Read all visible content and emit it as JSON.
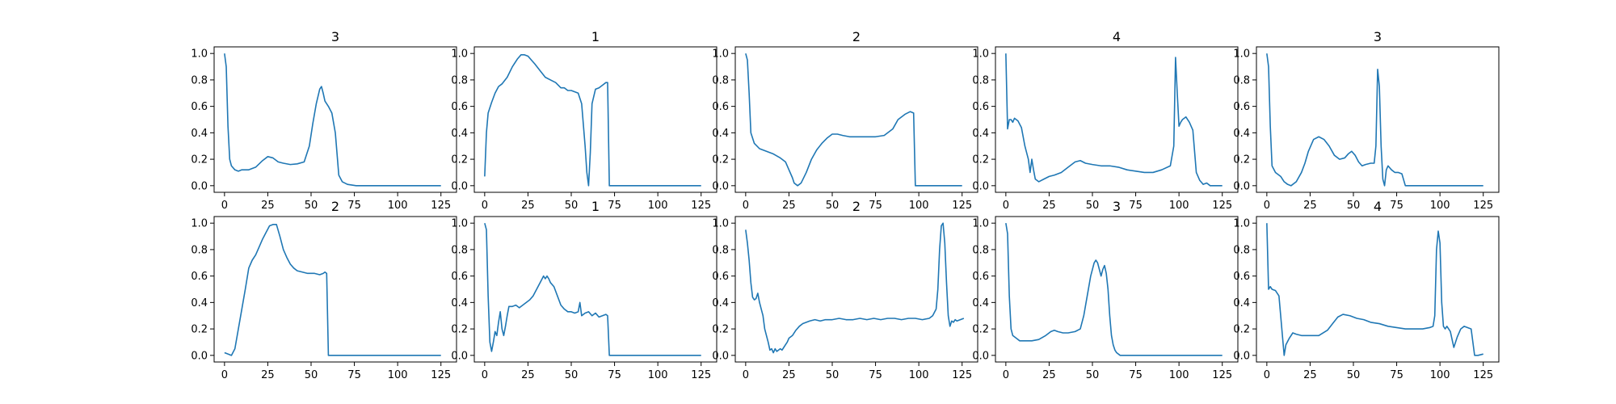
{
  "line_color": "#1f77b4",
  "chart_data": [
    {
      "type": "line",
      "title": "3",
      "xlim": [
        -6,
        134
      ],
      "ylim": [
        -0.05,
        1.05
      ],
      "xticks": [
        0,
        25,
        50,
        75,
        100,
        125
      ],
      "yticks": [
        0.0,
        0.2,
        0.4,
        0.6,
        0.8,
        1.0
      ],
      "x": [
        0,
        1,
        2,
        3,
        4,
        6,
        8,
        10,
        14,
        18,
        22,
        25,
        28,
        31,
        34,
        38,
        42,
        46,
        49,
        51,
        53,
        55,
        56,
        57,
        58,
        60,
        62,
        64,
        66,
        68,
        71,
        76,
        85,
        100,
        110,
        125
      ],
      "y": [
        1.0,
        0.9,
        0.45,
        0.2,
        0.15,
        0.12,
        0.11,
        0.12,
        0.12,
        0.14,
        0.19,
        0.22,
        0.21,
        0.18,
        0.17,
        0.16,
        0.165,
        0.18,
        0.3,
        0.47,
        0.62,
        0.73,
        0.75,
        0.7,
        0.64,
        0.6,
        0.55,
        0.4,
        0.08,
        0.03,
        0.01,
        0.0,
        0.0,
        0.0,
        0.0,
        0.0
      ]
    },
    {
      "type": "line",
      "title": "1",
      "xlim": [
        -6,
        134
      ],
      "ylim": [
        -0.05,
        1.05
      ],
      "xticks": [
        0,
        25,
        50,
        75,
        100,
        125
      ],
      "yticks": [
        0.0,
        0.2,
        0.4,
        0.6,
        0.8,
        1.0
      ],
      "x": [
        0,
        1,
        2,
        4,
        6,
        8,
        10,
        13,
        16,
        19,
        21,
        23,
        25,
        27,
        29,
        32,
        35,
        38,
        41,
        44,
        46,
        48,
        50,
        52,
        54,
        56,
        58,
        59,
        60,
        61,
        62,
        64,
        66,
        68,
        70,
        71,
        72,
        73,
        80,
        100,
        125
      ],
      "y": [
        0.07,
        0.4,
        0.55,
        0.63,
        0.7,
        0.75,
        0.77,
        0.82,
        0.9,
        0.96,
        0.99,
        0.99,
        0.98,
        0.95,
        0.92,
        0.87,
        0.82,
        0.8,
        0.78,
        0.74,
        0.74,
        0.72,
        0.72,
        0.71,
        0.7,
        0.62,
        0.3,
        0.1,
        0.0,
        0.25,
        0.62,
        0.73,
        0.74,
        0.76,
        0.78,
        0.78,
        0.0,
        0.0,
        0.0,
        0.0,
        0.0
      ]
    },
    {
      "type": "line",
      "title": "2",
      "xlim": [
        -6,
        134
      ],
      "ylim": [
        -0.05,
        1.05
      ],
      "xticks": [
        0,
        25,
        50,
        75,
        100,
        125
      ],
      "yticks": [
        0.0,
        0.2,
        0.4,
        0.6,
        0.8,
        1.0
      ],
      "x": [
        0,
        1,
        2,
        3,
        5,
        8,
        12,
        16,
        20,
        23,
        25,
        27,
        28,
        30,
        32,
        35,
        38,
        41,
        44,
        47,
        50,
        53,
        56,
        60,
        65,
        70,
        75,
        80,
        85,
        88,
        92,
        95,
        97,
        98,
        100,
        110,
        125
      ],
      "y": [
        1.0,
        0.95,
        0.7,
        0.4,
        0.32,
        0.28,
        0.26,
        0.24,
        0.21,
        0.18,
        0.12,
        0.06,
        0.02,
        0.0,
        0.02,
        0.1,
        0.2,
        0.27,
        0.32,
        0.36,
        0.39,
        0.39,
        0.38,
        0.37,
        0.37,
        0.37,
        0.37,
        0.38,
        0.43,
        0.5,
        0.54,
        0.56,
        0.55,
        0.0,
        0.0,
        0.0,
        0.0
      ]
    },
    {
      "type": "line",
      "title": "4",
      "xlim": [
        -6,
        134
      ],
      "ylim": [
        -0.05,
        1.05
      ],
      "xticks": [
        0,
        25,
        50,
        75,
        100,
        125
      ],
      "yticks": [
        0.0,
        0.2,
        0.4,
        0.6,
        0.8,
        1.0
      ],
      "x": [
        0,
        1,
        2,
        3,
        4,
        5,
        7,
        9,
        11,
        13,
        14,
        15,
        16,
        17,
        19,
        22,
        25,
        28,
        32,
        36,
        40,
        43,
        46,
        50,
        55,
        60,
        65,
        70,
        75,
        80,
        85,
        90,
        95,
        97,
        98,
        99,
        100,
        101,
        102,
        104,
        106,
        108,
        110,
        112,
        114,
        116,
        118,
        122,
        125
      ],
      "y": [
        1.0,
        0.43,
        0.5,
        0.5,
        0.48,
        0.51,
        0.49,
        0.44,
        0.3,
        0.2,
        0.1,
        0.2,
        0.12,
        0.05,
        0.03,
        0.05,
        0.07,
        0.08,
        0.1,
        0.14,
        0.18,
        0.19,
        0.17,
        0.16,
        0.15,
        0.15,
        0.14,
        0.12,
        0.11,
        0.1,
        0.1,
        0.12,
        0.15,
        0.3,
        0.97,
        0.7,
        0.45,
        0.48,
        0.5,
        0.52,
        0.48,
        0.42,
        0.1,
        0.04,
        0.01,
        0.02,
        0.0,
        0.0,
        0.0
      ]
    },
    {
      "type": "line",
      "title": "3",
      "xlim": [
        -6,
        134
      ],
      "ylim": [
        -0.05,
        1.05
      ],
      "xticks": [
        0,
        25,
        50,
        75,
        100,
        125
      ],
      "yticks": [
        0.0,
        0.2,
        0.4,
        0.6,
        0.8,
        1.0
      ],
      "x": [
        0,
        1,
        2,
        3,
        5,
        8,
        10,
        12,
        14,
        17,
        20,
        22,
        24,
        27,
        30,
        33,
        36,
        39,
        42,
        45,
        47,
        49,
        51,
        53,
        55,
        57,
        60,
        62,
        63,
        64,
        65,
        66,
        67,
        68,
        69,
        70,
        72,
        74,
        76,
        78,
        80,
        85,
        100,
        125
      ],
      "y": [
        1.0,
        0.9,
        0.45,
        0.15,
        0.1,
        0.07,
        0.03,
        0.01,
        0.0,
        0.03,
        0.1,
        0.17,
        0.26,
        0.35,
        0.37,
        0.35,
        0.3,
        0.23,
        0.2,
        0.21,
        0.24,
        0.26,
        0.23,
        0.18,
        0.15,
        0.16,
        0.17,
        0.17,
        0.3,
        0.88,
        0.75,
        0.3,
        0.05,
        0.0,
        0.12,
        0.15,
        0.12,
        0.1,
        0.1,
        0.09,
        0.0,
        0.0,
        0.0,
        0.0
      ]
    },
    {
      "type": "line",
      "title": "2",
      "xlim": [
        -6,
        134
      ],
      "ylim": [
        -0.05,
        1.05
      ],
      "xticks": [
        0,
        25,
        50,
        75,
        100,
        125
      ],
      "yticks": [
        0.0,
        0.2,
        0.4,
        0.6,
        0.8,
        1.0
      ],
      "x": [
        0,
        2,
        4,
        6,
        8,
        10,
        12,
        14,
        16,
        18,
        20,
        22,
        24,
        26,
        28,
        30,
        32,
        34,
        36,
        38,
        40,
        42,
        45,
        48,
        52,
        55,
        57,
        58,
        59,
        60,
        70,
        100,
        125
      ],
      "y": [
        0.02,
        0.01,
        0.0,
        0.05,
        0.2,
        0.35,
        0.5,
        0.66,
        0.72,
        0.76,
        0.82,
        0.88,
        0.93,
        0.98,
        0.99,
        0.99,
        0.9,
        0.8,
        0.74,
        0.69,
        0.66,
        0.64,
        0.63,
        0.62,
        0.62,
        0.61,
        0.62,
        0.63,
        0.62,
        0.0,
        0.0,
        0.0,
        0.0
      ]
    },
    {
      "type": "line",
      "title": "1",
      "xlim": [
        -6,
        134
      ],
      "ylim": [
        -0.05,
        1.05
      ],
      "xticks": [
        0,
        25,
        50,
        75,
        100,
        125
      ],
      "yticks": [
        0.0,
        0.2,
        0.4,
        0.6,
        0.8,
        1.0
      ],
      "x": [
        0,
        1,
        2,
        3,
        4,
        5,
        6,
        7,
        8,
        9,
        10,
        11,
        12,
        13,
        14,
        16,
        18,
        20,
        22,
        24,
        26,
        28,
        30,
        32,
        34,
        35,
        36,
        37,
        38,
        40,
        42,
        44,
        46,
        48,
        50,
        52,
        54,
        55,
        56,
        58,
        60,
        62,
        64,
        66,
        68,
        70,
        71,
        72,
        73,
        80,
        100,
        125
      ],
      "y": [
        1.0,
        0.95,
        0.45,
        0.1,
        0.03,
        0.1,
        0.18,
        0.15,
        0.25,
        0.33,
        0.2,
        0.15,
        0.22,
        0.3,
        0.37,
        0.37,
        0.38,
        0.36,
        0.38,
        0.4,
        0.42,
        0.45,
        0.5,
        0.55,
        0.6,
        0.58,
        0.6,
        0.58,
        0.55,
        0.52,
        0.45,
        0.38,
        0.35,
        0.33,
        0.33,
        0.32,
        0.33,
        0.4,
        0.3,
        0.32,
        0.33,
        0.3,
        0.32,
        0.29,
        0.3,
        0.31,
        0.3,
        0.0,
        0.0,
        0.0,
        0.0,
        0.0
      ]
    },
    {
      "type": "line",
      "title": "2",
      "xlim": [
        -6,
        134
      ],
      "ylim": [
        -0.05,
        1.05
      ],
      "xticks": [
        0,
        25,
        50,
        75,
        100,
        125
      ],
      "yticks": [
        0.0,
        0.2,
        0.4,
        0.6,
        0.8,
        1.0
      ],
      "x": [
        0,
        1,
        2,
        3,
        4,
        5,
        6,
        7,
        8,
        9,
        10,
        11,
        12,
        13,
        14,
        15,
        16,
        17,
        18,
        19,
        20,
        21,
        22,
        23,
        24,
        25,
        27,
        29,
        31,
        33,
        35,
        37,
        40,
        43,
        46,
        50,
        54,
        58,
        62,
        66,
        70,
        74,
        78,
        82,
        86,
        90,
        94,
        98,
        102,
        106,
        108,
        110,
        111,
        112,
        113,
        114,
        115,
        116,
        117,
        118,
        119,
        120,
        121,
        122,
        124,
        126
      ],
      "y": [
        0.95,
        0.85,
        0.72,
        0.55,
        0.44,
        0.42,
        0.43,
        0.47,
        0.4,
        0.35,
        0.3,
        0.2,
        0.15,
        0.1,
        0.04,
        0.05,
        0.02,
        0.05,
        0.03,
        0.04,
        0.05,
        0.04,
        0.06,
        0.08,
        0.1,
        0.13,
        0.15,
        0.19,
        0.22,
        0.24,
        0.25,
        0.26,
        0.27,
        0.26,
        0.27,
        0.27,
        0.28,
        0.27,
        0.27,
        0.28,
        0.27,
        0.28,
        0.27,
        0.28,
        0.28,
        0.27,
        0.28,
        0.28,
        0.27,
        0.28,
        0.3,
        0.35,
        0.5,
        0.8,
        0.98,
        1.0,
        0.85,
        0.55,
        0.3,
        0.22,
        0.26,
        0.25,
        0.27,
        0.26,
        0.27,
        0.28
      ]
    },
    {
      "type": "line",
      "title": "3",
      "xlim": [
        -6,
        134
      ],
      "ylim": [
        -0.05,
        1.05
      ],
      "xticks": [
        0,
        25,
        50,
        75,
        100,
        125
      ],
      "yticks": [
        0.0,
        0.2,
        0.4,
        0.6,
        0.8,
        1.0
      ],
      "x": [
        0,
        1,
        2,
        3,
        4,
        6,
        8,
        11,
        15,
        19,
        23,
        26,
        28,
        30,
        33,
        36,
        40,
        43,
        45,
        47,
        49,
        51,
        52,
        53,
        54,
        55,
        56,
        57,
        58,
        59,
        60,
        61,
        62,
        63,
        64,
        66,
        68,
        75,
        100,
        125
      ],
      "y": [
        1.0,
        0.92,
        0.45,
        0.2,
        0.15,
        0.13,
        0.11,
        0.11,
        0.11,
        0.12,
        0.15,
        0.18,
        0.19,
        0.18,
        0.17,
        0.17,
        0.18,
        0.2,
        0.3,
        0.45,
        0.6,
        0.7,
        0.72,
        0.7,
        0.65,
        0.6,
        0.65,
        0.68,
        0.62,
        0.5,
        0.3,
        0.15,
        0.08,
        0.04,
        0.02,
        0.0,
        0.0,
        0.0,
        0.0,
        0.0
      ]
    },
    {
      "type": "line",
      "title": "4",
      "xlim": [
        -6,
        134
      ],
      "ylim": [
        -0.05,
        1.05
      ],
      "xticks": [
        0,
        25,
        50,
        75,
        100,
        125
      ],
      "yticks": [
        0.0,
        0.2,
        0.4,
        0.6,
        0.8,
        1.0
      ],
      "x": [
        0,
        1,
        2,
        3,
        5,
        7,
        8,
        9,
        10,
        11,
        13,
        15,
        17,
        20,
        25,
        30,
        35,
        38,
        41,
        44,
        48,
        52,
        56,
        60,
        65,
        70,
        75,
        80,
        85,
        90,
        94,
        96,
        97,
        98,
        99,
        100,
        101,
        102,
        103,
        104,
        105,
        106,
        107,
        108,
        110,
        112,
        114,
        116,
        118,
        120,
        122,
        125
      ],
      "y": [
        1.0,
        0.5,
        0.52,
        0.5,
        0.49,
        0.45,
        0.3,
        0.15,
        0.0,
        0.08,
        0.13,
        0.17,
        0.16,
        0.15,
        0.15,
        0.15,
        0.19,
        0.24,
        0.29,
        0.31,
        0.3,
        0.28,
        0.27,
        0.25,
        0.24,
        0.22,
        0.21,
        0.2,
        0.2,
        0.2,
        0.21,
        0.22,
        0.3,
        0.8,
        0.94,
        0.85,
        0.4,
        0.22,
        0.2,
        0.22,
        0.2,
        0.18,
        0.12,
        0.06,
        0.14,
        0.2,
        0.22,
        0.21,
        0.2,
        0.0,
        0.0,
        0.01
      ]
    }
  ]
}
